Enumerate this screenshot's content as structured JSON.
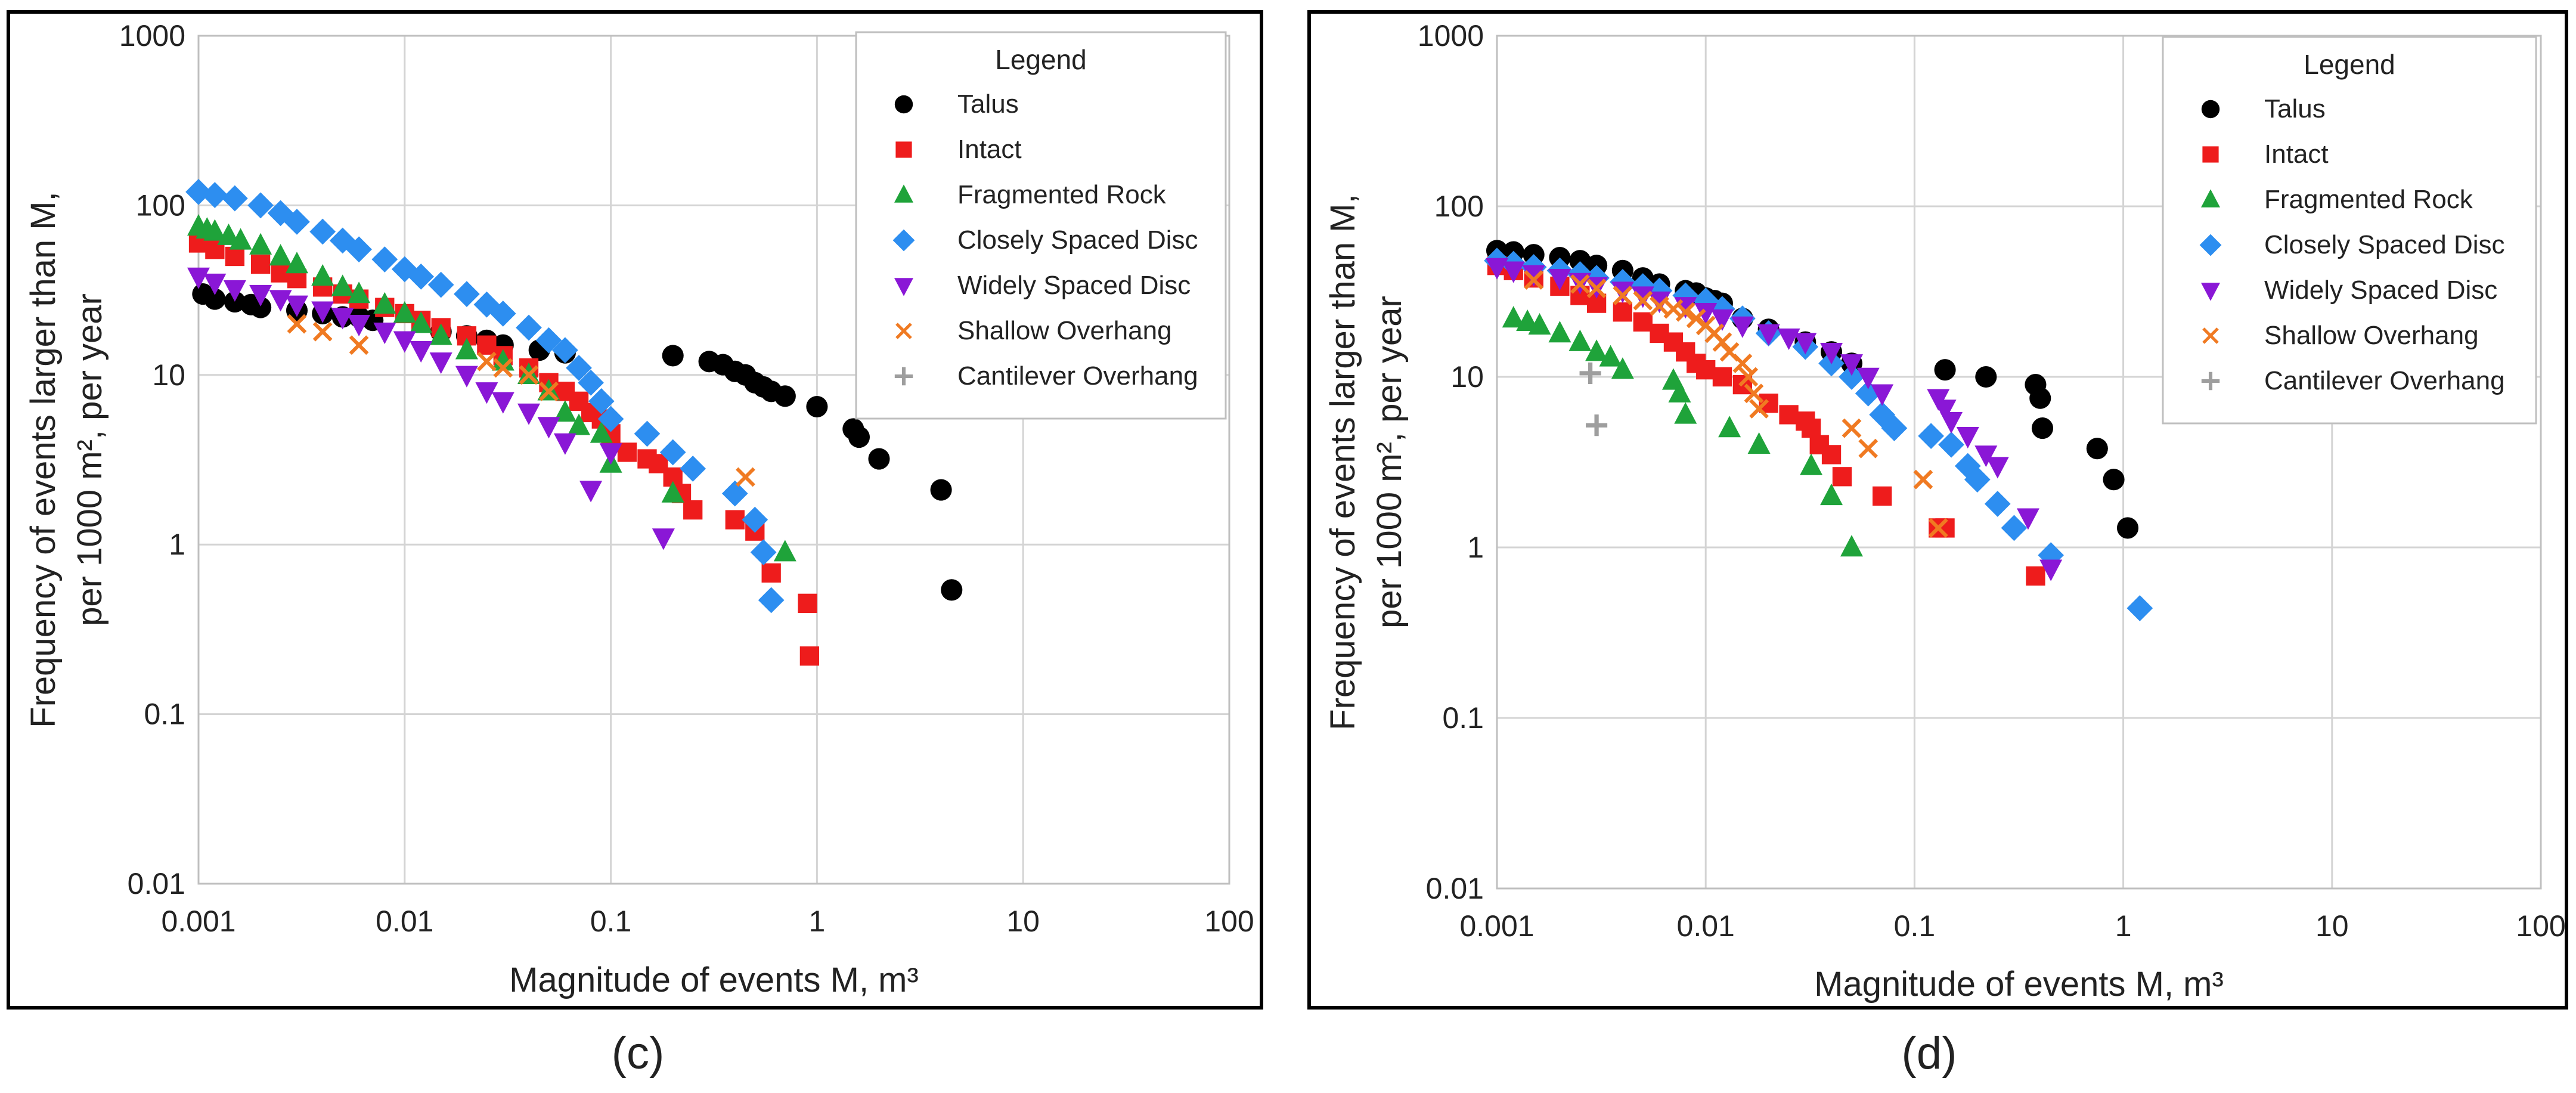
{
  "colors": {
    "Talus": "#000000",
    "Intact": "#ee1c1c",
    "Fragmented Rock": "#1fa33a",
    "Closely Spaced Disc": "#2d8ef0",
    "Widely Spaced Disc": "#8a17d6",
    "Shallow Overhang": "#f07a22",
    "Cantilever Overhang": "#9e9e9e",
    "grid": "#d4d4d4",
    "frame": "#000000"
  },
  "chart_data": [
    {
      "type": "scatter",
      "panel_label": "(c)",
      "title": "",
      "xlabel": "Magnitude of events M, m³",
      "ylabel_line1": "Frequency of events larger than M,",
      "ylabel_line2": "per 1000 m², per year",
      "x_scale": "log",
      "y_scale": "log",
      "xlim": [
        0.001,
        100
      ],
      "ylim": [
        0.01,
        1000
      ],
      "x_ticks": [
        0.001,
        0.01,
        0.1,
        1,
        10,
        100
      ],
      "x_tick_labels": [
        "0.001",
        "0.01",
        "0.1",
        "1",
        "10",
        "100"
      ],
      "y_ticks": [
        0.01,
        0.1,
        1,
        10,
        100,
        1000
      ],
      "y_tick_labels": [
        "0.01",
        "0.1",
        "1",
        "10",
        "100",
        "1000"
      ],
      "grid": true,
      "legend_title": "Legend",
      "legend_position": "top-right",
      "series": [
        {
          "name": "Talus",
          "marker": "circle",
          "x": [
            0.00105,
            0.0012,
            0.0015,
            0.0018,
            0.002,
            0.003,
            0.004,
            0.005,
            0.006,
            0.007,
            0.015,
            0.02,
            0.025,
            0.03,
            0.045,
            0.06,
            0.2,
            0.3,
            0.35,
            0.4,
            0.45,
            0.5,
            0.55,
            0.6,
            0.7,
            1.0,
            1.5,
            1.6,
            2.0,
            4.0,
            4.5
          ],
          "y": [
            30,
            28,
            27,
            26,
            25,
            24,
            23,
            22,
            22,
            21,
            18,
            17,
            16,
            15,
            14,
            13.5,
            13,
            12,
            11.5,
            10.5,
            10,
            9,
            8.5,
            8,
            7.5,
            6.5,
            4.8,
            4.3,
            3.2,
            2.1,
            0.54
          ]
        },
        {
          "name": "Intact",
          "marker": "square",
          "x": [
            0.001,
            0.0012,
            0.0015,
            0.002,
            0.0025,
            0.003,
            0.004,
            0.005,
            0.006,
            0.008,
            0.01,
            0.012,
            0.015,
            0.02,
            0.025,
            0.03,
            0.04,
            0.05,
            0.06,
            0.07,
            0.08,
            0.09,
            0.1,
            0.12,
            0.15,
            0.17,
            0.2,
            0.22,
            0.25,
            0.4,
            0.5,
            0.6,
            0.9,
            0.92
          ],
          "y": [
            60,
            55,
            50,
            45,
            40,
            37,
            33,
            30,
            28,
            25,
            23,
            21,
            19,
            17,
            15,
            13,
            11,
            9,
            8,
            7,
            6,
            5.5,
            4.5,
            3.5,
            3.2,
            3,
            2.5,
            2,
            1.6,
            1.4,
            1.2,
            0.68,
            0.45,
            0.22
          ]
        },
        {
          "name": "Fragmented Rock",
          "marker": "triangle",
          "x": [
            0.001,
            0.0011,
            0.0012,
            0.0014,
            0.0016,
            0.002,
            0.0025,
            0.003,
            0.004,
            0.005,
            0.006,
            0.008,
            0.01,
            0.012,
            0.015,
            0.02,
            0.03,
            0.04,
            0.05,
            0.06,
            0.07,
            0.09,
            0.1,
            0.2,
            0.7
          ],
          "y": [
            75,
            72,
            70,
            66,
            62,
            58,
            50,
            45,
            38,
            33,
            30,
            26,
            23,
            20,
            17,
            14,
            12,
            10,
            8,
            6,
            5,
            4.5,
            3,
            2,
            0.9
          ]
        },
        {
          "name": "Closely Spaced Disc",
          "marker": "diamond",
          "x": [
            0.001,
            0.0012,
            0.0015,
            0.002,
            0.0025,
            0.003,
            0.004,
            0.005,
            0.006,
            0.008,
            0.01,
            0.012,
            0.015,
            0.02,
            0.025,
            0.03,
            0.04,
            0.05,
            0.06,
            0.07,
            0.08,
            0.09,
            0.1,
            0.15,
            0.2,
            0.25,
            0.4,
            0.5,
            0.55,
            0.6
          ],
          "y": [
            120,
            115,
            110,
            100,
            90,
            80,
            70,
            62,
            55,
            48,
            42,
            38,
            34,
            30,
            26,
            23,
            19,
            16,
            14,
            11,
            9,
            7,
            5.5,
            4.5,
            3.5,
            2.8,
            2,
            1.4,
            0.9,
            0.47
          ]
        },
        {
          "name": "Widely Spaced Disc",
          "marker": "triangle-down",
          "x": [
            0.001,
            0.0012,
            0.0015,
            0.002,
            0.0025,
            0.003,
            0.004,
            0.005,
            0.006,
            0.008,
            0.01,
            0.012,
            0.015,
            0.02,
            0.025,
            0.03,
            0.04,
            0.05,
            0.06,
            0.08,
            0.1,
            0.18
          ],
          "y": [
            38,
            35,
            32,
            30,
            28,
            26,
            24,
            22,
            20,
            18,
            16,
            14,
            12,
            10,
            8,
            7,
            6,
            5,
            4,
            2.1,
            3.5,
            1.1
          ]
        },
        {
          "name": "Shallow Overhang",
          "marker": "x",
          "x": [
            0.003,
            0.004,
            0.006,
            0.025,
            0.03,
            0.04,
            0.05,
            0.45
          ],
          "y": [
            20,
            18,
            15,
            12,
            11,
            10,
            8,
            2.5
          ]
        },
        {
          "name": "Cantilever Overhang",
          "marker": "plus",
          "x": [],
          "y": []
        }
      ]
    },
    {
      "type": "scatter",
      "panel_label": "(d)",
      "title": "",
      "xlabel": "Magnitude of events M, m³",
      "ylabel_line1": "Frequency of events larger than M,",
      "ylabel_line2": "per 1000 m², per year",
      "x_scale": "log",
      "y_scale": "log",
      "xlim": [
        0.001,
        100
      ],
      "ylim": [
        0.01,
        1000
      ],
      "x_ticks": [
        0.001,
        0.01,
        0.1,
        1,
        10,
        100
      ],
      "x_tick_labels": [
        "0.001",
        "0.01",
        "0.1",
        "1",
        "10",
        "100"
      ],
      "y_ticks": [
        0.01,
        0.1,
        1,
        10,
        100,
        1000
      ],
      "y_tick_labels": [
        "0.01",
        "0.1",
        "1",
        "10",
        "100",
        "1000"
      ],
      "grid": true,
      "legend_title": "Legend",
      "legend_position": "top-right",
      "series": [
        {
          "name": "Talus",
          "marker": "circle",
          "x": [
            0.001,
            0.0012,
            0.0015,
            0.002,
            0.0025,
            0.003,
            0.004,
            0.005,
            0.006,
            0.008,
            0.009,
            0.01,
            0.011,
            0.012,
            0.015,
            0.02,
            0.03,
            0.04,
            0.05,
            0.14,
            0.22,
            0.38,
            0.4,
            0.41,
            0.75,
            0.9,
            1.05
          ],
          "y": [
            55,
            54,
            52,
            50,
            48,
            45,
            42,
            38,
            35,
            32,
            31,
            29,
            28,
            27,
            22,
            19,
            16,
            14,
            12,
            11,
            10,
            9,
            7.5,
            5,
            3.8,
            2.5,
            1.3
          ]
        },
        {
          "name": "Intact",
          "marker": "square",
          "x": [
            0.001,
            0.0012,
            0.0015,
            0.002,
            0.0025,
            0.003,
            0.004,
            0.005,
            0.006,
            0.007,
            0.008,
            0.009,
            0.01,
            0.012,
            0.015,
            0.02,
            0.025,
            0.03,
            0.032,
            0.035,
            0.04,
            0.045,
            0.07,
            0.13,
            0.14,
            0.38
          ],
          "y": [
            45,
            42,
            38,
            34,
            30,
            27,
            24,
            21,
            18,
            16,
            14,
            12,
            11,
            10,
            9,
            7,
            6,
            5.5,
            5,
            4,
            3.5,
            2.6,
            2,
            1.3,
            1.3,
            0.68
          ]
        },
        {
          "name": "Fragmented Rock",
          "marker": "triangle",
          "x": [
            0.0012,
            0.0014,
            0.0016,
            0.002,
            0.0025,
            0.003,
            0.0035,
            0.004,
            0.007,
            0.0075,
            0.008,
            0.013,
            0.018,
            0.032,
            0.04,
            0.05
          ],
          "y": [
            22,
            21,
            20,
            18,
            16,
            14,
            13,
            11,
            9.5,
            8,
            6,
            5,
            4,
            3,
            2,
            1
          ]
        },
        {
          "name": "Closely Spaced Disc",
          "marker": "diamond",
          "x": [
            0.001,
            0.0012,
            0.0015,
            0.002,
            0.0025,
            0.003,
            0.004,
            0.005,
            0.006,
            0.008,
            0.01,
            0.012,
            0.015,
            0.02,
            0.03,
            0.04,
            0.05,
            0.06,
            0.07,
            0.08,
            0.12,
            0.15,
            0.18,
            0.2,
            0.25,
            0.3,
            0.45,
            1.2
          ],
          "y": [
            48,
            46,
            44,
            42,
            40,
            38,
            36,
            34,
            32,
            30,
            28,
            25,
            22,
            18,
            15,
            12,
            10,
            8,
            6,
            5,
            4.5,
            4,
            3,
            2.5,
            1.8,
            1.3,
            0.9,
            0.44
          ]
        },
        {
          "name": "Widely Spaced Disc",
          "marker": "triangle-down",
          "x": [
            0.001,
            0.0012,
            0.0015,
            0.002,
            0.0025,
            0.003,
            0.004,
            0.005,
            0.006,
            0.008,
            0.01,
            0.012,
            0.015,
            0.02,
            0.025,
            0.03,
            0.04,
            0.05,
            0.06,
            0.07,
            0.13,
            0.14,
            0.15,
            0.18,
            0.22,
            0.25,
            0.35,
            0.45
          ],
          "y": [
            44,
            42,
            40,
            38,
            36,
            34,
            32,
            30,
            28,
            26,
            24,
            22,
            20,
            18,
            17,
            16,
            14,
            12,
            10,
            8,
            7.5,
            6.5,
            5.5,
            4.5,
            3.5,
            3,
            1.5,
            0.75
          ]
        },
        {
          "name": "Shallow Overhang",
          "marker": "x",
          "x": [
            0.0015,
            0.0025,
            0.003,
            0.004,
            0.005,
            0.006,
            0.007,
            0.008,
            0.009,
            0.01,
            0.011,
            0.012,
            0.013,
            0.015,
            0.016,
            0.017,
            0.018,
            0.05,
            0.06,
            0.11,
            0.13
          ],
          "y": [
            37,
            35,
            33,
            30,
            28,
            26,
            25,
            24,
            22,
            20,
            18,
            16,
            14,
            12,
            10,
            8,
            6.5,
            5,
            3.8,
            2.5,
            1.3
          ]
        },
        {
          "name": "Cantilever Overhang",
          "marker": "plus",
          "x": [
            0.0028,
            0.003
          ],
          "y": [
            10.5,
            5.2
          ]
        }
      ]
    }
  ]
}
